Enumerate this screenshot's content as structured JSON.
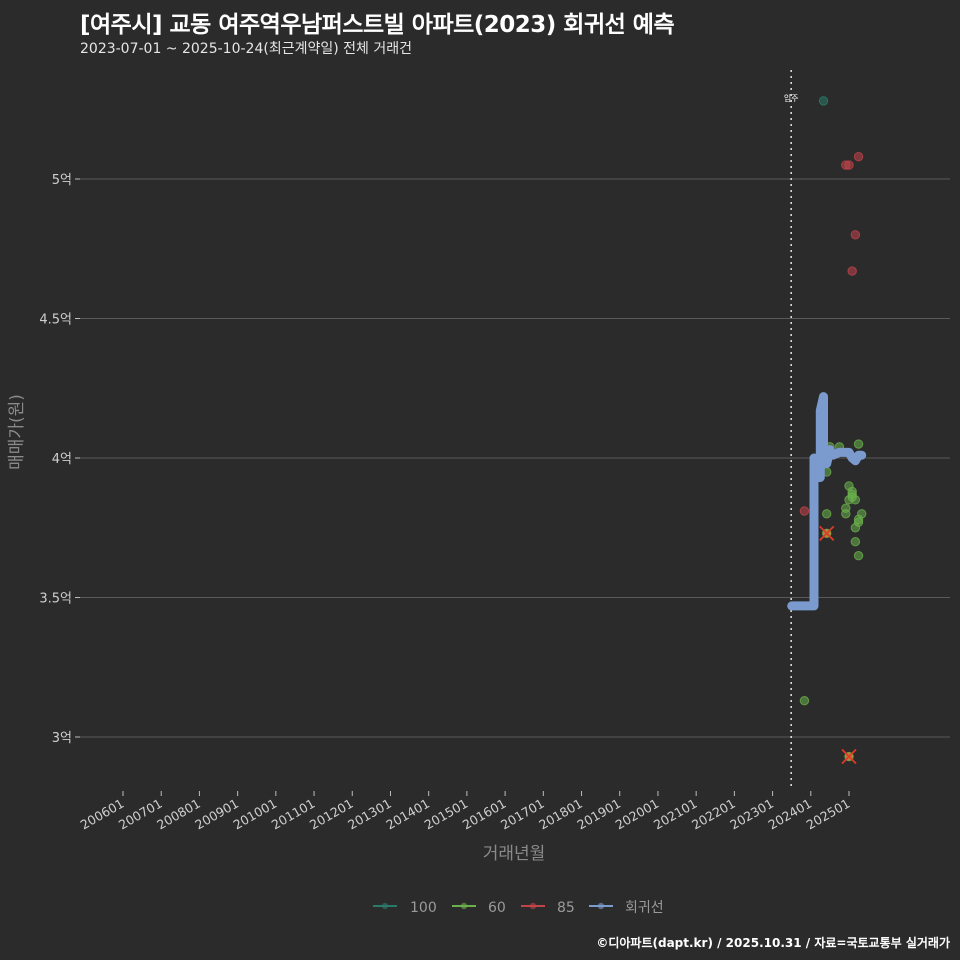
{
  "header": {
    "title": "[여주시] 교동 여주역우남퍼스트빌 아파트(2023) 회귀선 예측",
    "subtitle": "2023-07-01 ~ 2025-10-24(최근계약일) 전체 거래건"
  },
  "footer": {
    "credit": "©디아파트(dapt.kr) / 2025.10.31 / 자료=국토교통부 실거래가"
  },
  "annotation": {
    "label": "입주",
    "x": "202307"
  },
  "colors": {
    "background": "#2b2b2b",
    "grid": "#5a5a5a",
    "s100": "#2a7a6a",
    "s60": "#6ab04c",
    "s85": "#c0444a",
    "regression": "#7b9bcf",
    "outlier_cross": "#e03a2a"
  },
  "chart_data": {
    "type": "scatter",
    "title": "[여주시] 교동 여주역우남퍼스트빌 아파트(2023) 회귀선 예측",
    "subtitle": "2023-07-01 ~ 2025-10-24(최근계약일) 전체 거래건",
    "xlabel": "거래년월",
    "ylabel": "매매가(원)",
    "x_ticks": [
      "200601",
      "200701",
      "200801",
      "200901",
      "201001",
      "201101",
      "201201",
      "201301",
      "201401",
      "201501",
      "201601",
      "201701",
      "201801",
      "201901",
      "202001",
      "202101",
      "202201",
      "202301",
      "202401",
      "202501"
    ],
    "y_ticks": [
      "3억",
      "3.5억",
      "4억",
      "4.5억",
      "5억"
    ],
    "y_tick_values": [
      3.0,
      3.5,
      4.0,
      4.5,
      5.0
    ],
    "ylim": [
      2.83,
      5.33
    ],
    "grid": true,
    "legend_position": "bottom",
    "legend": [
      "100",
      "60",
      "85",
      "회귀선"
    ],
    "series": [
      {
        "name": "100",
        "points": [
          {
            "x": "2024-05",
            "y": 5.28
          }
        ]
      },
      {
        "name": "60",
        "points": [
          {
            "x": "2023-11",
            "y": 3.13
          },
          {
            "x": "2024-06",
            "y": 3.8
          },
          {
            "x": "2024-06",
            "y": 3.95
          },
          {
            "x": "2024-07",
            "y": 4.04
          },
          {
            "x": "2024-10",
            "y": 4.04
          },
          {
            "x": "2024-12",
            "y": 3.8
          },
          {
            "x": "2024-12",
            "y": 3.82
          },
          {
            "x": "2025-01",
            "y": 3.85
          },
          {
            "x": "2025-01",
            "y": 3.9
          },
          {
            "x": "2025-02",
            "y": 3.86
          },
          {
            "x": "2025-02",
            "y": 3.88
          },
          {
            "x": "2025-02",
            "y": 3.87
          },
          {
            "x": "2025-03",
            "y": 3.85
          },
          {
            "x": "2025-03",
            "y": 3.75
          },
          {
            "x": "2025-03",
            "y": 3.7
          },
          {
            "x": "2025-04",
            "y": 3.77
          },
          {
            "x": "2025-04",
            "y": 3.78
          },
          {
            "x": "2025-05",
            "y": 3.8
          },
          {
            "x": "2025-04",
            "y": 3.65
          },
          {
            "x": "2025-04",
            "y": 4.05
          },
          {
            "x": "2025-01",
            "y": 2.93
          },
          {
            "x": "2024-06",
            "y": 3.73
          }
        ]
      },
      {
        "name": "85",
        "points": [
          {
            "x": "2023-11",
            "y": 3.81
          },
          {
            "x": "2024-12",
            "y": 5.05
          },
          {
            "x": "2025-01",
            "y": 5.05
          },
          {
            "x": "2025-04",
            "y": 5.08
          },
          {
            "x": "2025-03",
            "y": 4.8
          },
          {
            "x": "2025-02",
            "y": 4.67
          },
          {
            "x": "2024-06",
            "y": 3.73,
            "outlier": true
          },
          {
            "x": "2025-01",
            "y": 2.93,
            "outlier": true
          }
        ]
      },
      {
        "name": "회귀선",
        "type": "line",
        "points": [
          {
            "x": "2023-07",
            "y": 3.47
          },
          {
            "x": "2024-01",
            "y": 3.47
          },
          {
            "x": "2024-02",
            "y": 3.47
          },
          {
            "x": "2024-02",
            "y": 4.0
          },
          {
            "x": "2024-03",
            "y": 3.93
          },
          {
            "x": "2024-04",
            "y": 3.93
          },
          {
            "x": "2024-04",
            "y": 4.17
          },
          {
            "x": "2024-05",
            "y": 4.22
          },
          {
            "x": "2024-05",
            "y": 3.99
          },
          {
            "x": "2024-06",
            "y": 3.98
          },
          {
            "x": "2024-07",
            "y": 4.03
          },
          {
            "x": "2024-08",
            "y": 4.01
          },
          {
            "x": "2024-10",
            "y": 4.02
          },
          {
            "x": "2024-12",
            "y": 4.02
          },
          {
            "x": "2025-01",
            "y": 4.02
          },
          {
            "x": "2025-02",
            "y": 4.0
          },
          {
            "x": "2025-03",
            "y": 3.99
          },
          {
            "x": "2025-04",
            "y": 4.01
          },
          {
            "x": "2025-05",
            "y": 4.01
          }
        ]
      }
    ]
  }
}
